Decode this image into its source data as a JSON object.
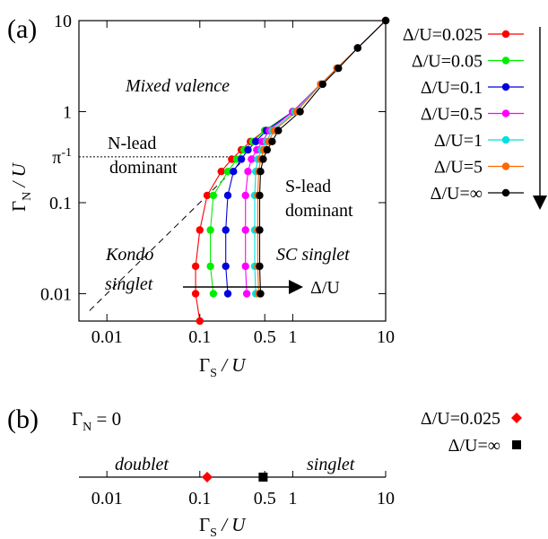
{
  "chart_data": [
    {
      "type": "scatter",
      "panel_label": "(a)",
      "xscale": "log",
      "yscale": "log",
      "xlim": [
        0.005,
        10
      ],
      "ylim": [
        0.005,
        10
      ],
      "xlabel_main": "Γ",
      "xlabel_sub": "S",
      "xlabel_rest": " / U",
      "ylabel_main": "Γ",
      "ylabel_sub": "N",
      "ylabel_rest": " / U",
      "xticks": [
        {
          "v": 0.01,
          "label": "0.01"
        },
        {
          "v": 0.1,
          "label": "0.1"
        },
        {
          "v": 0.5,
          "label": "0.5"
        },
        {
          "v": 1,
          "label": "1"
        },
        {
          "v": 10,
          "label": "10"
        }
      ],
      "yticks": [
        {
          "v": 0.01,
          "label": "0.01"
        },
        {
          "v": 0.1,
          "label": "0.1"
        },
        {
          "v": 1,
          "label": "1"
        },
        {
          "v": 10,
          "label": "10"
        }
      ],
      "pi_tick": {
        "v": 0.3183,
        "label": "π",
        "sup": "-1"
      },
      "annotations": {
        "mixed_valence": "Mixed valence",
        "n_lead_1": "N-lead",
        "n_lead_2": "dominant",
        "s_lead_1": "S-lead",
        "s_lead_2": "dominant",
        "kondo_1": "Kondo",
        "kondo_2": "singlet",
        "sc_singlet": "SC singlet",
        "arrow_label": "Δ/U"
      },
      "series": [
        {
          "name": "Δ/U=0.025",
          "color": "#ff0000",
          "points": [
            [
              0.1,
              0.005
            ],
            [
              0.09,
              0.01
            ],
            [
              0.09,
              0.02
            ],
            [
              0.1,
              0.05
            ],
            [
              0.12,
              0.12
            ],
            [
              0.17,
              0.22
            ],
            [
              0.22,
              0.3
            ],
            [
              0.28,
              0.38
            ],
            [
              0.35,
              0.47
            ],
            [
              0.5,
              0.62
            ],
            [
              1,
              1
            ],
            [
              2,
              2
            ],
            [
              3,
              3
            ],
            [
              5,
              5
            ],
            [
              10,
              10
            ]
          ]
        },
        {
          "name": "Δ/U=0.05",
          "color": "#00ee00",
          "points": [
            [
              0.14,
              0.01
            ],
            [
              0.13,
              0.02
            ],
            [
              0.13,
              0.05
            ],
            [
              0.14,
              0.12
            ],
            [
              0.2,
              0.22
            ],
            [
              0.25,
              0.3
            ],
            [
              0.3,
              0.38
            ],
            [
              0.37,
              0.47
            ],
            [
              0.5,
              0.62
            ],
            [
              1,
              1
            ],
            [
              2,
              2
            ],
            [
              3,
              3
            ],
            [
              5,
              5
            ],
            [
              10,
              10
            ]
          ]
        },
        {
          "name": "Δ/U=0.1",
          "color": "#0000dd",
          "points": [
            [
              0.2,
              0.01
            ],
            [
              0.19,
              0.02
            ],
            [
              0.19,
              0.05
            ],
            [
              0.2,
              0.12
            ],
            [
              0.23,
              0.22
            ],
            [
              0.28,
              0.3
            ],
            [
              0.33,
              0.38
            ],
            [
              0.4,
              0.47
            ],
            [
              0.52,
              0.62
            ],
            [
              1,
              1
            ],
            [
              2,
              2
            ],
            [
              3,
              3
            ],
            [
              5,
              5
            ],
            [
              10,
              10
            ]
          ]
        },
        {
          "name": "Δ/U=0.5",
          "color": "#ff00ff",
          "points": [
            [
              0.32,
              0.01
            ],
            [
              0.31,
              0.02
            ],
            [
              0.31,
              0.05
            ],
            [
              0.31,
              0.12
            ],
            [
              0.33,
              0.22
            ],
            [
              0.36,
              0.3
            ],
            [
              0.41,
              0.38
            ],
            [
              0.47,
              0.47
            ],
            [
              0.56,
              0.62
            ],
            [
              1,
              1
            ],
            [
              2,
              2
            ],
            [
              3,
              3
            ],
            [
              5,
              5
            ],
            [
              10,
              10
            ]
          ]
        },
        {
          "name": "Δ/U=1",
          "color": "#00e0e0",
          "points": [
            [
              0.4,
              0.01
            ],
            [
              0.39,
              0.02
            ],
            [
              0.39,
              0.05
            ],
            [
              0.39,
              0.12
            ],
            [
              0.4,
              0.22
            ],
            [
              0.42,
              0.3
            ],
            [
              0.46,
              0.38
            ],
            [
              0.52,
              0.47
            ],
            [
              0.6,
              0.62
            ],
            [
              1.05,
              1
            ],
            [
              2,
              2
            ],
            [
              3,
              3
            ],
            [
              5,
              5
            ],
            [
              10,
              10
            ]
          ]
        },
        {
          "name": "Δ/U=5",
          "color": "#ff6600",
          "points": [
            [
              0.43,
              0.01
            ],
            [
              0.42,
              0.02
            ],
            [
              0.42,
              0.05
            ],
            [
              0.42,
              0.12
            ],
            [
              0.43,
              0.22
            ],
            [
              0.45,
              0.3
            ],
            [
              0.49,
              0.38
            ],
            [
              0.55,
              0.47
            ],
            [
              0.63,
              0.62
            ],
            [
              1.1,
              1
            ],
            [
              2,
              2
            ],
            [
              3,
              3
            ],
            [
              5,
              5
            ],
            [
              10,
              10
            ]
          ]
        },
        {
          "name": "Δ/U=∞",
          "color": "#000000",
          "points": [
            [
              0.45,
              0.01
            ],
            [
              0.44,
              0.02
            ],
            [
              0.44,
              0.05
            ],
            [
              0.44,
              0.12
            ],
            [
              0.45,
              0.22
            ],
            [
              0.48,
              0.3
            ],
            [
              0.53,
              0.38
            ],
            [
              0.6,
              0.47
            ],
            [
              0.7,
              0.62
            ],
            [
              1.2,
              1
            ],
            [
              2.1,
              2
            ],
            [
              3.1,
              3
            ],
            [
              5,
              5
            ],
            [
              10,
              10
            ]
          ]
        }
      ]
    },
    {
      "type": "scatter",
      "panel_label": "(b)",
      "xscale": "log",
      "xlim": [
        0.005,
        10
      ],
      "condition_main": "Γ",
      "condition_sub": "N",
      "condition_rest": " = 0",
      "xlabel_main": "Γ",
      "xlabel_sub": "S",
      "xlabel_rest": " / U",
      "xticks": [
        {
          "v": 0.01,
          "label": "0.01"
        },
        {
          "v": 0.1,
          "label": "0.1"
        },
        {
          "v": 0.5,
          "label": "0.5"
        },
        {
          "v": 1,
          "label": "1"
        },
        {
          "v": 10,
          "label": "10"
        }
      ],
      "region_left": "doublet",
      "region_right": "singlet",
      "series": [
        {
          "name": "Δ/U=0.025",
          "color": "#ff0000",
          "marker": "diamond",
          "x": 0.12
        },
        {
          "name": "Δ/U=∞",
          "color": "#000000",
          "marker": "square",
          "x": 0.48
        }
      ]
    }
  ]
}
